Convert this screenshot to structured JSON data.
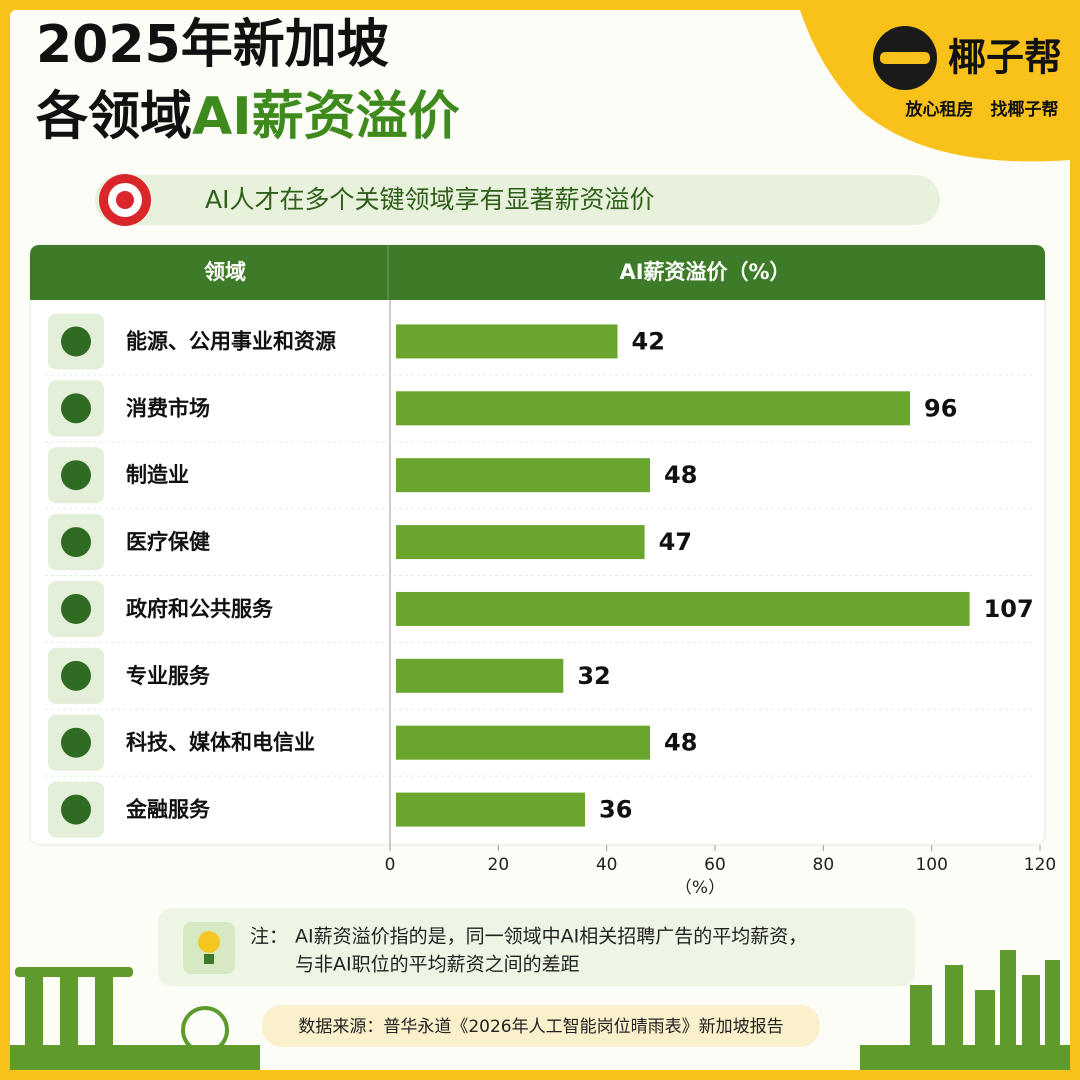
{
  "header": {
    "title_lines": [
      "2025年新加坡",
      "各领域"
    ],
    "title_highlight": "AI薪资溢价"
  },
  "brand": {
    "name": "椰子帮",
    "slogan": "放心租房　找椰子帮"
  },
  "subtitle": "AI人才在多个关键领域享有显著薪资溢价",
  "chart_data": {
    "type": "bar",
    "orientation": "horizontal",
    "column_headers": [
      "领域",
      "AI薪资溢价（%）"
    ],
    "categories": [
      "能源、公用事业和资源",
      "消费市场",
      "制造业",
      "医疗保健",
      "政府和公共服务",
      "专业服务",
      "科技、媒体和电信业",
      "金融服务"
    ],
    "values": [
      42,
      96,
      48,
      47,
      107,
      32,
      48,
      36
    ],
    "color": "#6aa52e",
    "xlim": [
      0,
      120
    ],
    "xticks": [
      0,
      20,
      40,
      60,
      80,
      100,
      120
    ],
    "xlabel": "（%）"
  },
  "note": {
    "prefix": "注：",
    "lines": [
      "AI薪资溢价指的是，同一领域中AI相关招聘广告的平均薪资，",
      "与非AI职位的平均薪资之间的差距"
    ]
  },
  "source": "数据来源：普华永道《2026年人工智能岗位晴雨表》新加坡报告"
}
